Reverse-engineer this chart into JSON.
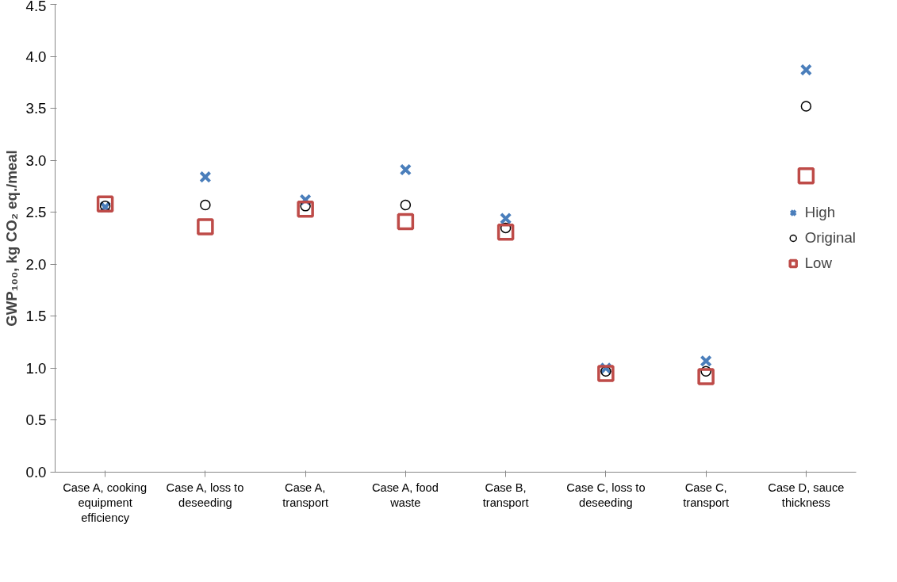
{
  "chart_data": {
    "type": "scatter",
    "ylabel": "GWP₁₀₀, kg CO₂ eq./meal",
    "categories": [
      "Case A, cooking equipment efficiency",
      "Case A, loss to deseeding",
      "Case A, transport",
      "Case A, food waste",
      "Case B, transport",
      "Case C, loss to deseeding",
      "Case C, transport",
      "Case D, sauce thickness"
    ],
    "series": [
      {
        "name": "High",
        "color": "#4a7ebb",
        "marker": "cross",
        "values": [
          2.55,
          2.84,
          2.62,
          2.91,
          2.44,
          1.0,
          1.07,
          3.87
        ]
      },
      {
        "name": "Original",
        "color": "#000000",
        "marker": "circle",
        "values": [
          2.56,
          2.57,
          2.56,
          2.57,
          2.35,
          0.97,
          0.97,
          3.52
        ]
      },
      {
        "name": "Low",
        "color": "#be4b48",
        "marker": "square",
        "values": [
          2.58,
          2.36,
          2.53,
          2.41,
          2.31,
          0.95,
          0.92,
          2.85
        ]
      }
    ],
    "ylim": [
      0,
      4.5
    ],
    "yticks": [
      {
        "value": 0,
        "label": "0.0"
      },
      {
        "value": 0.5,
        "label": "0.5"
      },
      {
        "value": 1,
        "label": "1.0"
      },
      {
        "value": 1.5,
        "label": "1.5"
      },
      {
        "value": 2,
        "label": "2.0"
      },
      {
        "value": 2.5,
        "label": "2.5"
      },
      {
        "value": 3,
        "label": "3.0"
      },
      {
        "value": 3.5,
        "label": "3.5"
      },
      {
        "value": 4,
        "label": "4.0"
      },
      {
        "value": 4.5,
        "label": "4.5"
      }
    ],
    "grid": false,
    "legend": "right"
  }
}
